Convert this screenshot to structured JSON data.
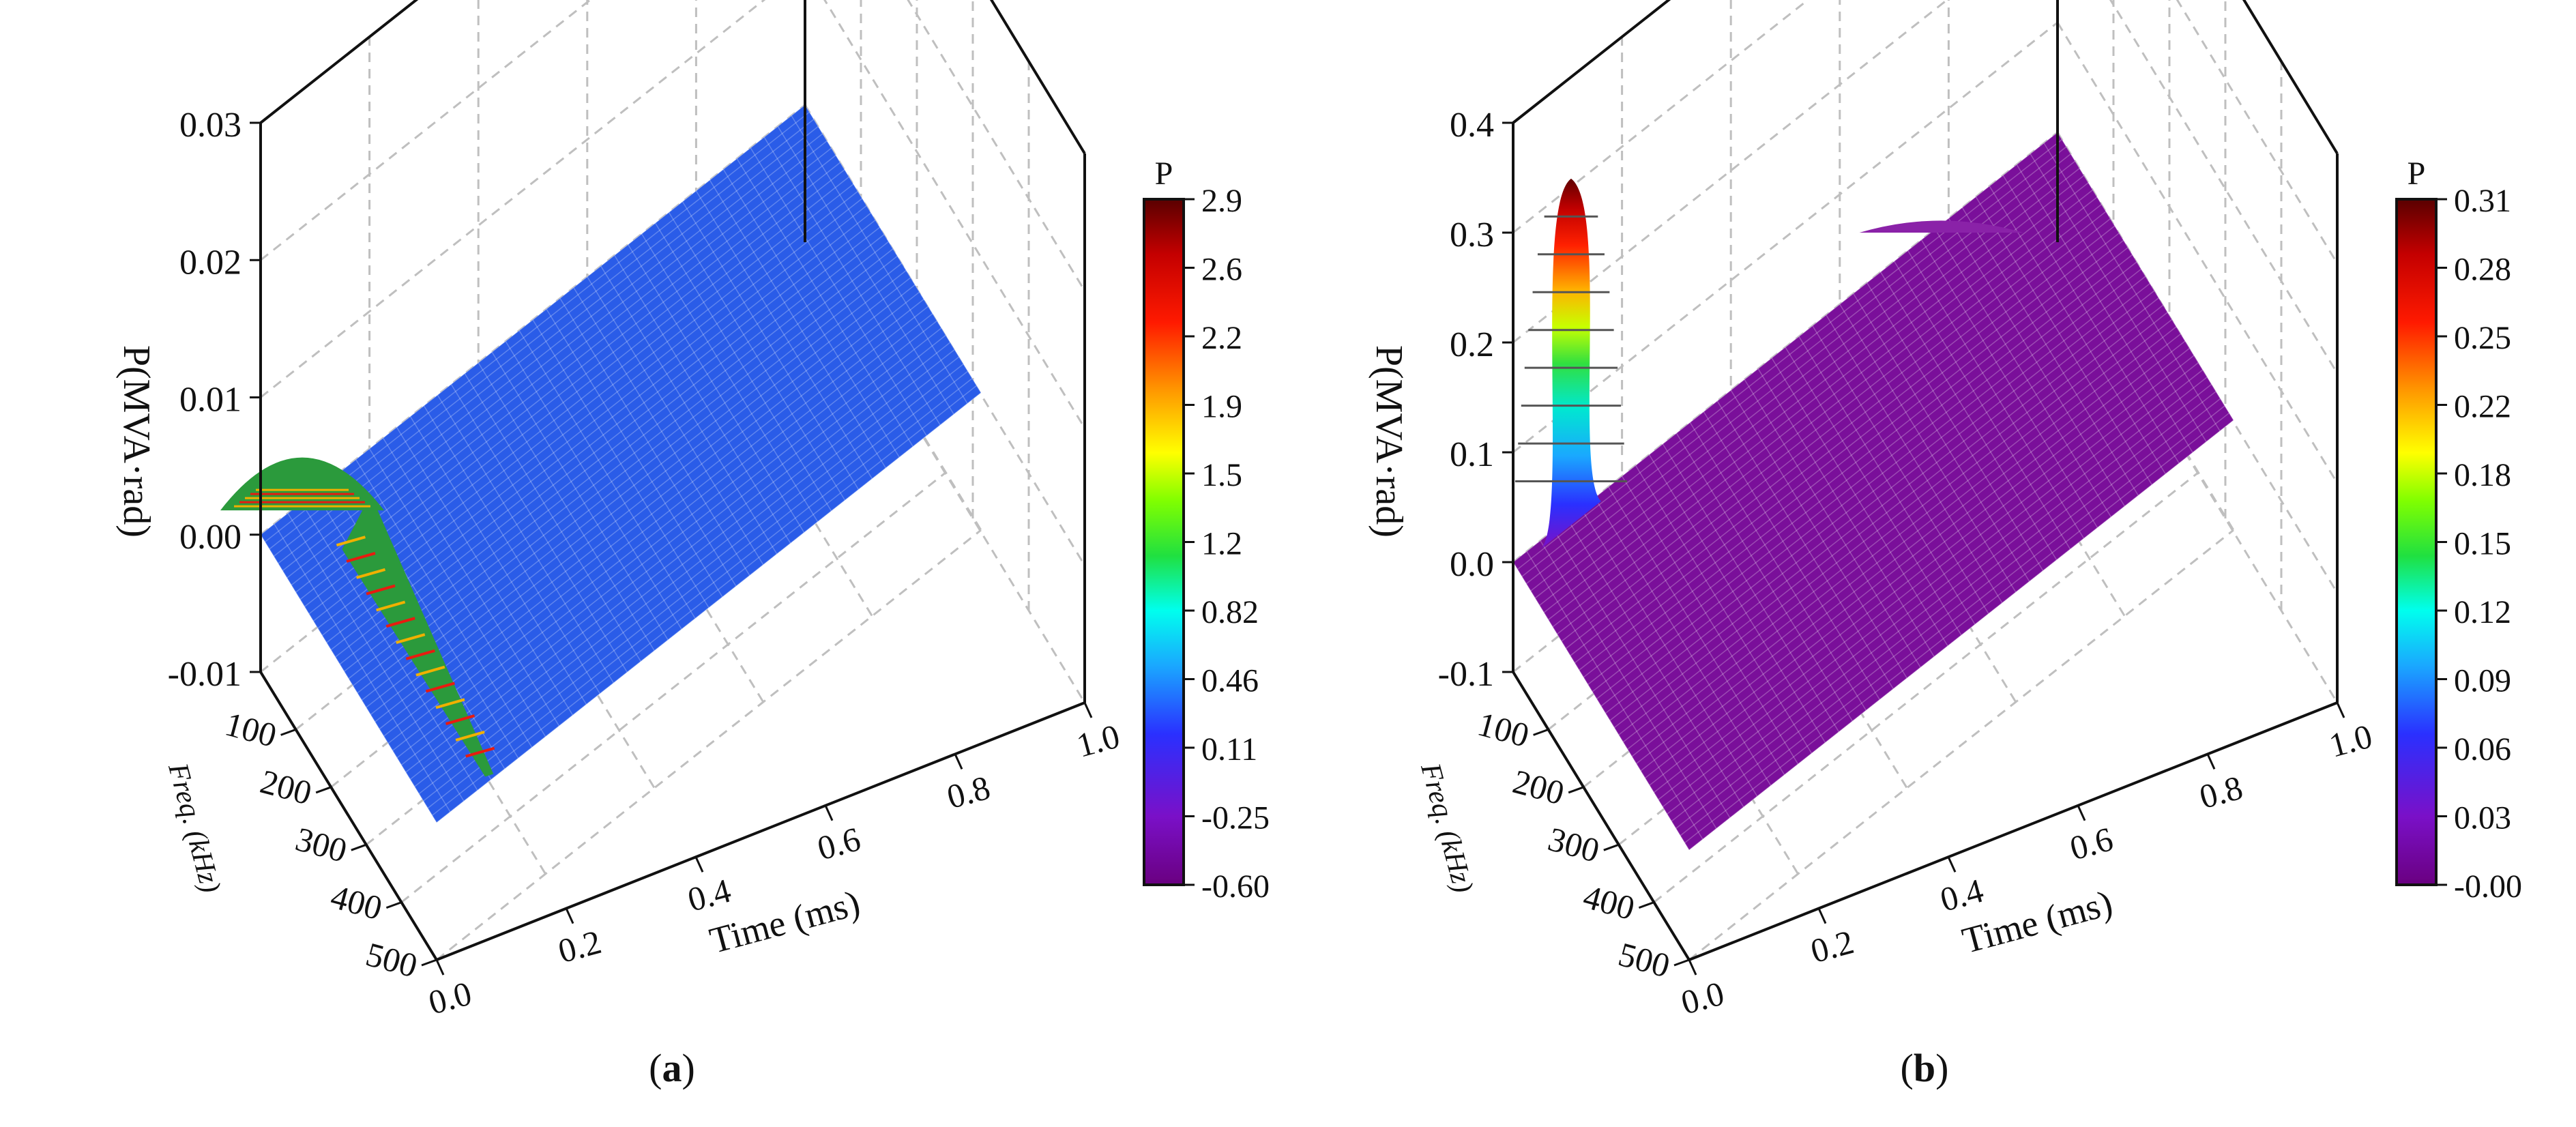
{
  "figure": {
    "panel_a_label": "a",
    "panel_b_label": "b"
  },
  "chart_data": [
    {
      "type": "surface",
      "panel": "a",
      "xlabel": "Time (ms)",
      "ylabel": "Freq. (kHz)",
      "zlabel": "P(MVA·rad)",
      "x_ticks": [
        0.0,
        0.2,
        0.4,
        0.6,
        0.8,
        1.0
      ],
      "x_tick_labels": [
        "0.0",
        "0.2",
        "0.4",
        "0.6",
        "0.8",
        "1.0"
      ],
      "y_ticks": [
        100,
        200,
        300,
        400,
        500
      ],
      "y_tick_labels": [
        "100",
        "200",
        "300",
        "400",
        "500"
      ],
      "z_ticks": [
        -0.01,
        0.0,
        0.01,
        0.02,
        0.03
      ],
      "z_tick_labels": [
        "-0.01",
        "0.00",
        "0.01",
        "0.02",
        "0.03"
      ],
      "xlim": [
        0,
        1.0
      ],
      "ylim": [
        0,
        500
      ],
      "zlim": [
        -0.01,
        0.03
      ],
      "grid": true,
      "colorbar": {
        "title": "P",
        "ticks": [
          2.9,
          2.6,
          2.2,
          1.9,
          1.5,
          1.2,
          0.82,
          0.46,
          0.11,
          -0.25,
          -0.6
        ],
        "tick_labels": [
          "2.9",
          "2.6",
          "2.2",
          "1.9",
          "1.5",
          "1.2",
          "0.82",
          "0.46",
          "0.11",
          "-0.25",
          "-0.60"
        ],
        "range": [
          -0.6,
          2.9
        ]
      },
      "surface": {
        "baseline": 0.0,
        "surface_color": "#2a5ce8",
        "features": [
          {
            "kind": "ridge",
            "time_ms": 0.1,
            "freq_khz_range": [
              0,
              500
            ],
            "peak": 0.003
          },
          {
            "kind": "bump",
            "time_ms": 0.07,
            "freq_khz": 20,
            "peak": 0.0035
          }
        ]
      }
    },
    {
      "type": "surface",
      "panel": "b",
      "xlabel": "Time (ms)",
      "ylabel": "Freq. (kHz)",
      "zlabel": "P(MVA·rad)",
      "x_ticks": [
        0.0,
        0.2,
        0.4,
        0.6,
        0.8,
        1.0
      ],
      "x_tick_labels": [
        "0.0",
        "0.2",
        "0.4",
        "0.6",
        "0.8",
        "1.0"
      ],
      "y_ticks": [
        100,
        200,
        300,
        400,
        500
      ],
      "y_tick_labels": [
        "100",
        "200",
        "300",
        "400",
        "500"
      ],
      "z_ticks": [
        -0.1,
        0.0,
        0.1,
        0.2,
        0.3,
        0.4
      ],
      "z_tick_labels": [
        "-0.1",
        "0.0",
        "0.1",
        "0.2",
        "0.3",
        "0.4"
      ],
      "xlim": [
        0,
        1.0
      ],
      "ylim": [
        0,
        500
      ],
      "zlim": [
        -0.1,
        0.4
      ],
      "grid": true,
      "colorbar": {
        "title": "P",
        "ticks": [
          0.31,
          0.28,
          0.25,
          0.22,
          0.18,
          0.15,
          0.12,
          0.09,
          0.06,
          0.03,
          -0.0
        ],
        "tick_labels": [
          "0.31",
          "0.28",
          "0.25",
          "0.22",
          "0.18",
          "0.15",
          "0.12",
          "0.09",
          "0.06",
          "0.03",
          "-0.00"
        ],
        "range": [
          0.0,
          0.31
        ]
      },
      "surface": {
        "baseline": 0.0,
        "surface_color": "#7a0f9a",
        "features": [
          {
            "kind": "peak",
            "time_ms": 0.1,
            "freq_khz": 0,
            "peak": 0.31
          },
          {
            "kind": "bump",
            "time_ms": 0.78,
            "freq_khz": 0,
            "peak": 0.01
          }
        ]
      }
    }
  ]
}
